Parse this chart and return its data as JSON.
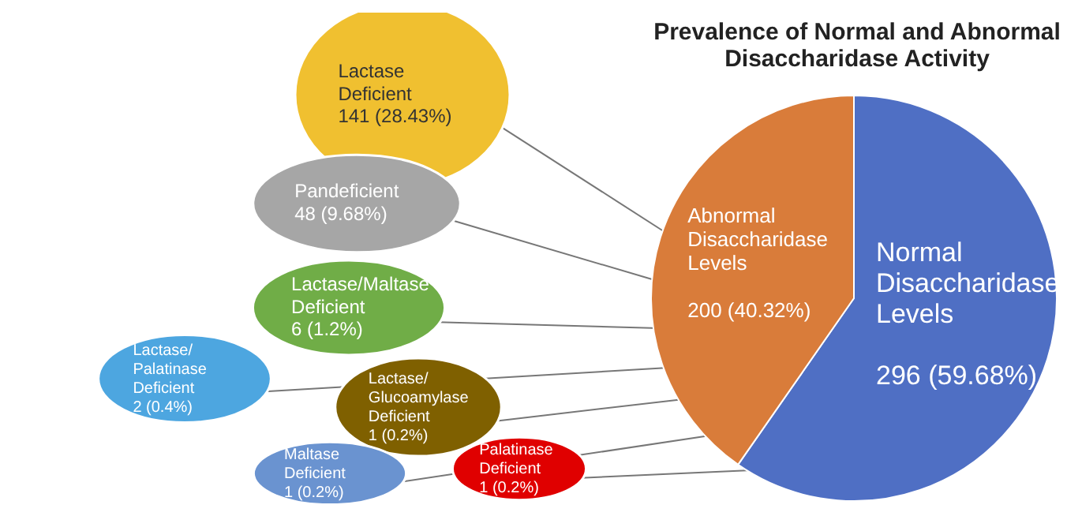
{
  "chart_data": [
    {
      "type": "pie",
      "title": "Prevalence of Normal and Abnormal Disaccharidase Activity",
      "categories": [
        "Normal Disaccharidase Levels",
        "Abnormal Disaccharidase Levels"
      ],
      "values": [
        296,
        200
      ],
      "value_labels": [
        "296 (59.68%)",
        "200 (40.32%)"
      ],
      "colors": [
        "#4f6fc4",
        "#d97c3a"
      ],
      "legend": false
    },
    {
      "type": "other",
      "categories": [
        "Lactase Deficient",
        "Pandeficient",
        "Lactase/Maltase Deficient",
        "Lactase/ Palatinase Deficient",
        "Lactase/ Glucoamylase Deficient",
        "Maltase Deficient",
        "Palatinase Deficient"
      ],
      "values": [
        141,
        48,
        6,
        2,
        1,
        1,
        1
      ],
      "value_labels": [
        "141 (28.43%)",
        "48 (9.68%)",
        "6 (1.2%)",
        "2 (0.4%)",
        "1 (0.2%)",
        "1 (0.2%)",
        "1 (0.2%)"
      ],
      "colors": [
        "#f0c030",
        "#a6a6a6",
        "#70ad47",
        "#4da6e0",
        "#7f6000",
        "#6a93d0",
        "#e00000"
      ]
    }
  ]
}
